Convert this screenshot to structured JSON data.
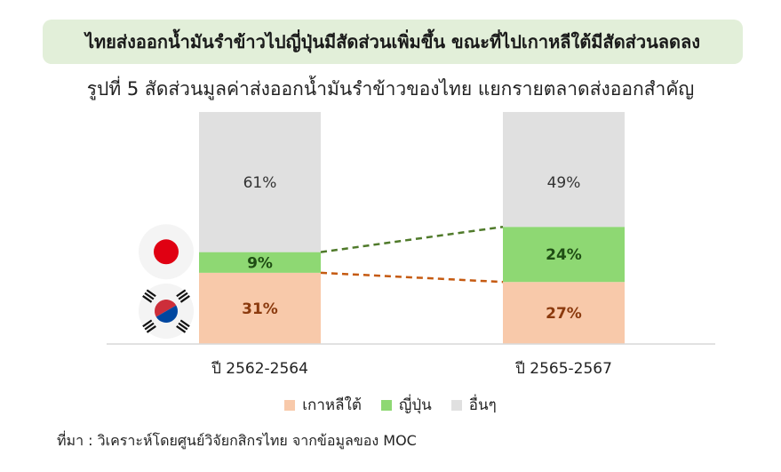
{
  "banner": {
    "text": "ไทยส่งออกน้ำมันรำข้าวไปญี่ปุ่นมีสัดส่วนเพิ่มขึ้น ขณะที่ไปเกาหลีใต้มีสัดส่วนลดลง"
  },
  "chart_data": {
    "type": "bar",
    "stacked": true,
    "title": "รูปที่ 5 สัดส่วนมูลค่าส่งออกน้ำมันรำข้าวของไทย แยกรายตลาดส่งออกสำคัญ",
    "categories": [
      "ปี 2562-2564",
      "ปี 2565-2567"
    ],
    "series": [
      {
        "name": "เกาหลีใต้",
        "values": [
          31,
          27
        ],
        "labels": [
          "31%",
          "27%"
        ],
        "color": "#f8c9aa",
        "label_color": "#8b3a0e"
      },
      {
        "name": "ญี่ปุ่น",
        "values": [
          9,
          24
        ],
        "labels": [
          "9%",
          "24%"
        ],
        "color": "#8ed873",
        "label_color": "#1f4d14"
      },
      {
        "name": "อื่นๆ",
        "values": [
          61,
          49
        ],
        "labels": [
          "61%",
          "49%"
        ],
        "color": "#e0e0e0",
        "label_color": "#333333"
      }
    ],
    "ylim": [
      0,
      101
    ],
    "connector_colors": {
      "japan": "#4f7a2a",
      "korea": "#c55a11"
    },
    "flag_icons": [
      "japan-flag-icon",
      "south-korea-flag-icon"
    ]
  },
  "source": {
    "text": "ที่มา : วิเคราะห์โดยศูนย์วิจัยกสิกรไทย จากข้อมูลของ MOC"
  }
}
